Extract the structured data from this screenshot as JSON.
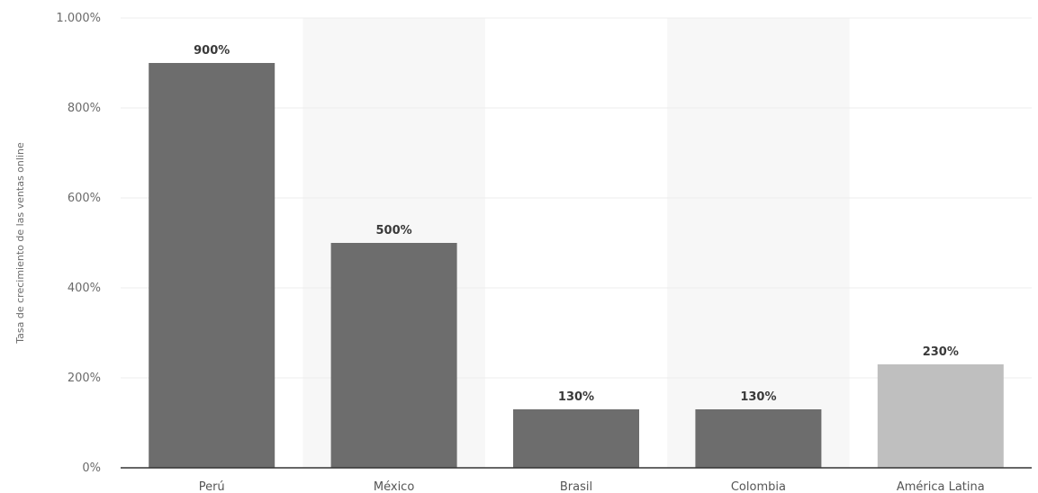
{
  "chart_data": {
    "type": "bar",
    "title": "",
    "xlabel": "",
    "ylabel": "Tasa de crecimiento de las ventas online",
    "categories": [
      "Perú",
      "México",
      "Brasil",
      "Colombia",
      "América Latina"
    ],
    "values": [
      900,
      500,
      130,
      130,
      230
    ],
    "value_labels": [
      "900%",
      "500%",
      "130%",
      "130%",
      "230%"
    ],
    "ylim": [
      0,
      1000
    ],
    "yticks": [
      0,
      200,
      400,
      600,
      800,
      1000
    ],
    "ytick_labels": [
      "0%",
      "200%",
      "400%",
      "600%",
      "800%",
      "1.000%"
    ],
    "grid": true,
    "colors": {
      "default_bar": "#6d6d6d",
      "highlight_bar": "#bfbfbf",
      "alternate_band": "#f7f7f7",
      "gridline": "#ececec",
      "baseline": "#333333"
    },
    "highlight_categories": [
      "América Latina"
    ]
  }
}
